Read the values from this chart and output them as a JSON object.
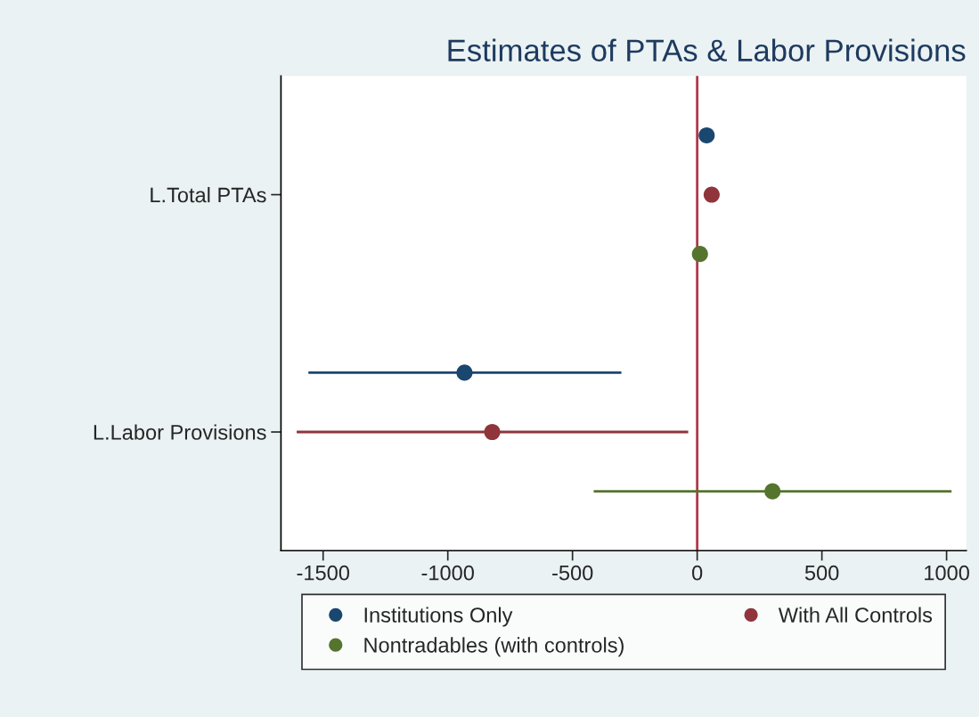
{
  "chart_data": {
    "type": "scatter",
    "title": "Estimates of PTAs & Labor Provisions",
    "orientation": "horizontal",
    "categories": [
      "L.Total PTAs",
      "L.Labor Provisions"
    ],
    "series": [
      {
        "name": "Institutions Only",
        "color": "#1a476f",
        "values": [
          38,
          -933
        ],
        "errors": [
          null,
          [
            -1559,
            -304
          ]
        ]
      },
      {
        "name": "With All Controls",
        "color": "#90353b",
        "values": [
          58,
          -822
        ],
        "errors": [
          null,
          [
            -1606,
            -36
          ]
        ]
      },
      {
        "name": "Nontradables (with controls)",
        "color": "#55752f",
        "values": [
          11,
          302
        ],
        "errors": [
          null,
          [
            -415,
            1020
          ]
        ]
      }
    ],
    "xlim": [
      -1669,
      1079
    ],
    "xticks": [
      -1500,
      -1000,
      -500,
      0,
      500,
      1000
    ],
    "ref_lines": [
      {
        "axis": "x",
        "value": 0,
        "color": "#b0384a"
      }
    ],
    "marker": "circle",
    "grid": false,
    "legend": "bottom"
  }
}
